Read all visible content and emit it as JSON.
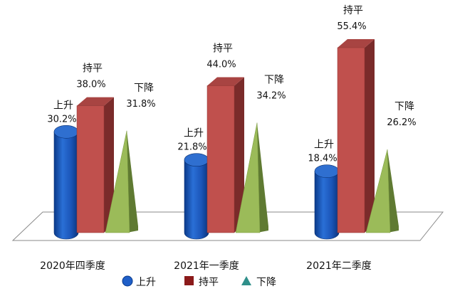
{
  "chart_data": {
    "type": "bar",
    "title": "",
    "xlabel": "",
    "ylabel": "",
    "ylim": [
      0,
      60
    ],
    "grid": false,
    "legend_position": "bottom",
    "categories": [
      "2020年四季度",
      "2021年一季度",
      "2021年二季度"
    ],
    "series": [
      {
        "name": "上升",
        "shape": "cylinder",
        "color": "#1f5fc8",
        "values": [
          30.2,
          21.8,
          18.4
        ],
        "labels": [
          "30.2%",
          "21.8%",
          "18.4%"
        ]
      },
      {
        "name": "持平",
        "shape": "box",
        "color": "#c0504d",
        "values": [
          38.0,
          44.0,
          55.4
        ],
        "labels": [
          "38.0%",
          "44.0%",
          "55.4%"
        ]
      },
      {
        "name": "下降",
        "shape": "pyramid",
        "color": "#9bbb59",
        "values": [
          31.8,
          34.2,
          26.2
        ],
        "labels": [
          "31.8%",
          "34.2%",
          "26.2%"
        ]
      }
    ]
  },
  "legend": {
    "items": [
      {
        "label": "上升",
        "icon": "blue-circle-icon",
        "color": "#1f5fc8"
      },
      {
        "label": "持平",
        "icon": "dark-red-square-icon",
        "color": "#8b1a1a"
      },
      {
        "label": "下降",
        "icon": "teal-triangle-icon",
        "color": "#2f8f8a"
      }
    ]
  }
}
